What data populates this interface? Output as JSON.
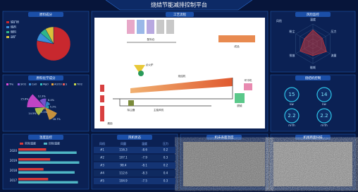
{
  "title": "烧结节能减排控制平台",
  "chart_data": [
    {
      "type": "pie",
      "title": "原料成分",
      "categories": [
        "铁矿粉",
        "熔剂",
        "燃料",
        "返矿"
      ],
      "values": [
        78,
        8,
        6,
        8
      ],
      "colors": [
        "#c8282e",
        "#3a8fd8",
        "#2fb58a",
        "#d8c23a"
      ]
    },
    {
      "type": "rose",
      "title": "原料化学成分",
      "categories": [
        "TFe",
        "SiO2",
        "CaO",
        "MgO",
        "Al2O3",
        "S",
        "TiO2"
      ],
      "values": [
        25.6,
        12.3,
        8.4,
        5.2,
        18.7,
        3.1,
        14.5
      ],
      "value_labels": [
        "25.6%",
        "12.3%",
        "8.4%",
        "5.2%",
        "18.7%",
        "3.1%",
        "14.5%"
      ],
      "colors": [
        "#e04ad8",
        "#8a5ae0",
        "#3a8fd8",
        "#2fc0c0",
        "#e8a43a",
        "#e05a5a",
        "#c8d84a"
      ],
      "rlim": [
        0,
        30
      ]
    },
    {
      "type": "hbar",
      "title": "温度监控",
      "categories": [
        "2020",
        "2019",
        "2018",
        "2017"
      ],
      "series": [
        {
          "name": "实际温度",
          "color": "#d83a3a",
          "values": [
            42,
            48,
            38,
            45
          ]
        },
        {
          "name": "目标温度",
          "color": "#4fb6c4",
          "values": [
            88,
            92,
            85,
            90
          ]
        }
      ],
      "xlim": [
        0,
        100
      ]
    },
    {
      "type": "radar",
      "title": "风险监控",
      "categories": [
        "温度",
        "压力",
        "流量",
        "能耗",
        "排放",
        "粉尘"
      ],
      "series": [
        {
          "name": "风险",
          "color": "#d83a3a",
          "values": [
            70,
            55,
            80,
            60,
            75,
            50
          ]
        }
      ],
      "rlim": [
        0,
        100
      ]
    }
  ],
  "gauges": {
    "title": "烧结机控制",
    "items": [
      {
        "value": 15,
        "unit": "kw"
      },
      {
        "value": 14,
        "unit": "kw"
      },
      {
        "value": 2.2,
        "unit": "m³/h"
      },
      {
        "value": 2.2,
        "unit": "m³/h"
      }
    ]
  },
  "table": {
    "title": "风机状态",
    "header": [
      "风机",
      "风量",
      "温度",
      "压力"
    ],
    "rows": [
      [
        "#1",
        "116.3",
        "-8.6",
        "0.2"
      ],
      [
        "#2",
        "107.1",
        "-7.9",
        "0.3"
      ],
      [
        "#3",
        "98.4",
        "-8.1",
        "0.2"
      ],
      [
        "#4",
        "112.6",
        "-8.3",
        "0.4"
      ],
      [
        "#5",
        "104.9",
        "-7.5",
        "0.3"
      ]
    ]
  },
  "images": [
    {
      "title": "机床表面温度"
    },
    {
      "title": "机尾断面扫描"
    }
  ],
  "diagram": {
    "title": "工艺流程",
    "labels": [
      "配料仓",
      "点火炉",
      "烧结机",
      "主抽风机",
      "除尘器",
      "烟囱",
      "脱硫",
      "环冷机",
      "成品"
    ]
  }
}
